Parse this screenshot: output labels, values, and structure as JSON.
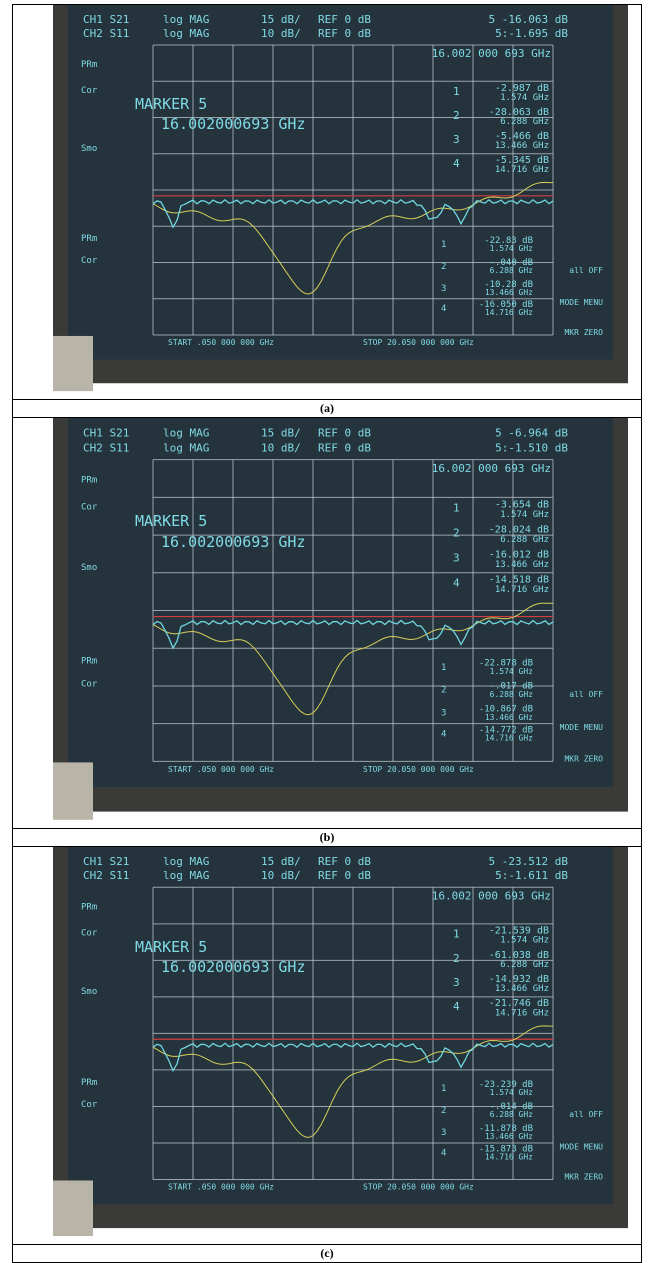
{
  "figure": {
    "panels": [
      {
        "caption": "(a)",
        "header": {
          "ch1": "CH1 S21",
          "ch2": "CH2 S11",
          "format1": "log MAG",
          "format2": "log MAG",
          "scale1": "15 dB/",
          "scale2": "10 dB/",
          "ref1": "REF 0 dB",
          "ref2": "REF 0 dB",
          "readout1": "5 -16.063 dB",
          "readout2": "5:-1.695 dB"
        },
        "marker_freq": "16.002 000 693 GHz",
        "side_labels": [
          "PRm",
          "Cor",
          "Smo",
          "PRm",
          "Cor"
        ],
        "marker_title": "MARKER 5",
        "marker_value": "16.002000693 GHz",
        "markers_ch1": [
          {
            "index": "1",
            "value": "-2.987 dB",
            "freq": "1.574 GHz"
          },
          {
            "index": "2",
            "value": "-28.063 dB",
            "freq": "6.288 GHz"
          },
          {
            "index": "3",
            "value": "-5.466 dB",
            "freq": "13.466 GHz"
          },
          {
            "index": "4",
            "value": "-5.345 dB",
            "freq": "14.716 GHz"
          }
        ],
        "markers_ch2": [
          {
            "index": "1",
            "value": "-22.83 dB",
            "freq": "1.574 GHz"
          },
          {
            "index": "2",
            "value": "-.040 dB",
            "freq": "6.288 GHz"
          },
          {
            "index": "3",
            "value": "-10.28 dB",
            "freq": "13.466 GHz"
          },
          {
            "index": "4",
            "value": "-16.050 dB",
            "freq": "14.716 GHz"
          }
        ],
        "start": "START .050 000 000 GHz",
        "stop": "STOP 20.050 000 000 GHz",
        "softkeys": [
          "all OFF",
          "MODE MENU",
          "MKR ZERO"
        ]
      },
      {
        "caption": "(b)",
        "header": {
          "ch1": "CH1 S21",
          "ch2": "CH2 S11",
          "format1": "log MAG",
          "format2": "log MAG",
          "scale1": "15 dB/",
          "scale2": "10 dB/",
          "ref1": "REF 0 dB",
          "ref2": "REF 0 dB",
          "readout1": "5 -6.964 dB",
          "readout2": "5:-1.510 dB"
        },
        "marker_freq": "16.002 000 693 GHz",
        "side_labels": [
          "PRm",
          "Cor",
          "Smo",
          "PRm",
          "Cor"
        ],
        "marker_title": "MARKER 5",
        "marker_value": "16.002000693 GHz",
        "markers_ch1": [
          {
            "index": "1",
            "value": "-3.654 dB",
            "freq": "1.574 GHz"
          },
          {
            "index": "2",
            "value": "-28.024 dB",
            "freq": "6.288 GHz"
          },
          {
            "index": "3",
            "value": "-16.012 dB",
            "freq": "13.466 GHz"
          },
          {
            "index": "4",
            "value": "-14.518 dB",
            "freq": "14.716 GHz"
          }
        ],
        "markers_ch2": [
          {
            "index": "1",
            "value": "-22.878 dB",
            "freq": "1.574 GHz"
          },
          {
            "index": "2",
            "value": "-.017 dB",
            "freq": "6.288 GHz"
          },
          {
            "index": "3",
            "value": "-10.867 dB",
            "freq": "13.466 GHz"
          },
          {
            "index": "4",
            "value": "-14.772 dB",
            "freq": "14.716 GHz"
          }
        ],
        "start": "START .050 000 000 GHz",
        "stop": "STOP 20.050 000 000 GHz",
        "softkeys": [
          "all OFF",
          "MODE MENU",
          "MKR ZERO"
        ]
      },
      {
        "caption": "(c)",
        "header": {
          "ch1": "CH1 S21",
          "ch2": "CH2 S11",
          "format1": "log MAG",
          "format2": "log MAG",
          "scale1": "15 dB/",
          "scale2": "10 dB/",
          "ref1": "REF 0 dB",
          "ref2": "REF 0 dB",
          "readout1": "5 -23.512 dB",
          "readout2": "5:-1.611 dB"
        },
        "marker_freq": "16.002 000 693 GHz",
        "side_labels": [
          "PRm",
          "Cor",
          "Smo",
          "PRm",
          "Cor"
        ],
        "marker_title": "MARKER 5",
        "marker_value": "16.002000693 GHz",
        "markers_ch1": [
          {
            "index": "1",
            "value": "-21.539 dB",
            "freq": "1.574 GHz"
          },
          {
            "index": "2",
            "value": "-61.038 dB",
            "freq": "6.288 GHz"
          },
          {
            "index": "3",
            "value": "-14.932 dB",
            "freq": "13.466 GHz"
          },
          {
            "index": "4",
            "value": "-21.746 dB",
            "freq": "14.716 GHz"
          }
        ],
        "markers_ch2": [
          {
            "index": "1",
            "value": "-23.239 dB",
            "freq": "1.574 GHz"
          },
          {
            "index": "2",
            "value": "-.014 dB",
            "freq": "6.288 GHz"
          },
          {
            "index": "3",
            "value": "-11.878 dB",
            "freq": "13.466 GHz"
          },
          {
            "index": "4",
            "value": "-15.873 dB",
            "freq": "14.716 GHz"
          }
        ],
        "start": "START .050 000 000 GHz",
        "stop": "STOP 20.050 000 000 GHz",
        "softkeys": [
          "all OFF",
          "MODE MENU",
          "MKR ZERO"
        ]
      }
    ]
  }
}
